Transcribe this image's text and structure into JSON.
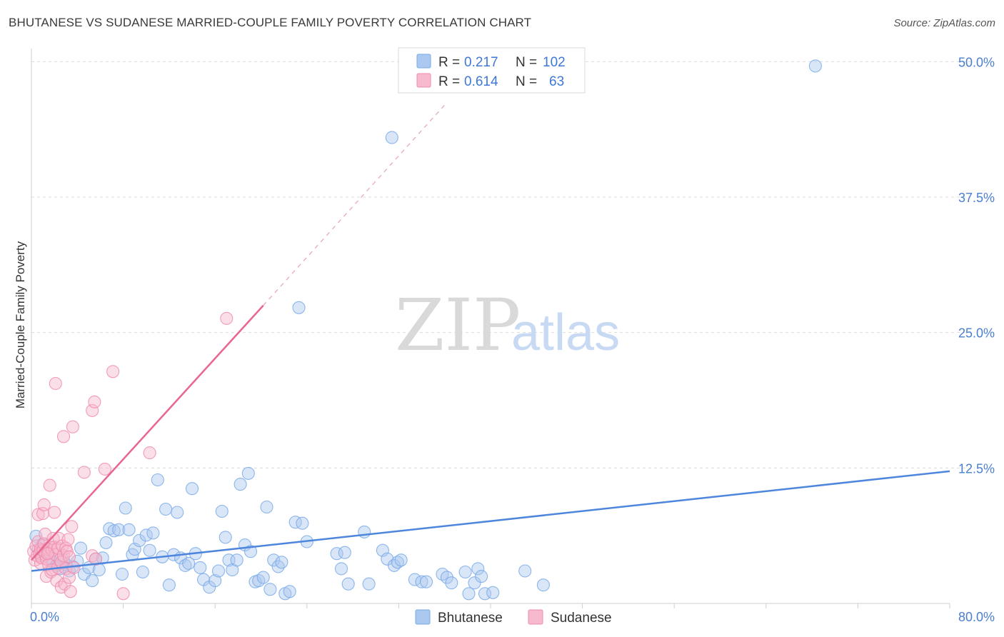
{
  "title": "BHUTANESE VS SUDANESE MARRIED-COUPLE FAMILY POVERTY CORRELATION CHART",
  "source": "Source: ZipAtlas.com",
  "watermark": {
    "zip": "ZIP",
    "atlas": "atlas"
  },
  "legend": {
    "r_label": "R =",
    "n_label": "N =",
    "series": [
      {
        "name": "Bhutanese",
        "r": "0.217",
        "n": "102",
        "color": "#7aaae8",
        "fill": "#aac8f0"
      },
      {
        "name": "Sudanese",
        "r": "0.614",
        "n": "63",
        "color": "#f08cae",
        "fill": "#f6b9cd"
      }
    ]
  },
  "chart_data": {
    "type": "scatter",
    "title": "BHUTANESE VS SUDANESE MARRIED-COUPLE FAMILY POVERTY CORRELATION CHART",
    "xlabel": "",
    "ylabel": "Married-Couple Family Poverty",
    "xlim": [
      0,
      80
    ],
    "ylim": [
      0,
      52
    ],
    "x_tick_labels": [
      "0.0%",
      "80.0%"
    ],
    "y_ticks": [
      12.5,
      25.0,
      37.5,
      50.0
    ],
    "y_tick_labels": [
      "12.5%",
      "25.0%",
      "37.5%",
      "50.0%"
    ],
    "grid": true,
    "series": [
      {
        "name": "Bhutanese",
        "color": "#4d86dc",
        "trendline": {
          "x0": 0,
          "y0": 3.0,
          "x1": 80,
          "y1": 12.2
        },
        "points": [
          [
            0.4,
            6.2
          ],
          [
            0.6,
            5.0
          ],
          [
            0.8,
            4.4
          ],
          [
            1.0,
            5.5
          ],
          [
            1.3,
            4.8
          ],
          [
            1.6,
            4.2
          ],
          [
            1.9,
            3.8
          ],
          [
            2.2,
            3.5
          ],
          [
            2.5,
            3.2
          ],
          [
            2.8,
            4.0
          ],
          [
            3.0,
            3.6
          ],
          [
            3.3,
            3.0
          ],
          [
            3.6,
            3.4
          ],
          [
            4.0,
            3.9
          ],
          [
            4.3,
            5.1
          ],
          [
            4.6,
            2.7
          ],
          [
            5.0,
            3.3
          ],
          [
            5.3,
            2.1
          ],
          [
            5.6,
            4.1
          ],
          [
            5.9,
            3.1
          ],
          [
            6.2,
            4.2
          ],
          [
            6.5,
            5.6
          ],
          [
            6.8,
            6.9
          ],
          [
            7.2,
            6.7
          ],
          [
            7.6,
            6.8
          ],
          [
            7.9,
            2.7
          ],
          [
            8.2,
            8.8
          ],
          [
            8.5,
            6.8
          ],
          [
            8.8,
            4.5
          ],
          [
            9.0,
            5.0
          ],
          [
            9.4,
            5.8
          ],
          [
            9.7,
            2.9
          ],
          [
            10.0,
            6.3
          ],
          [
            10.3,
            4.9
          ],
          [
            10.6,
            6.5
          ],
          [
            11.0,
            11.4
          ],
          [
            11.4,
            4.3
          ],
          [
            11.7,
            8.7
          ],
          [
            12.0,
            1.7
          ],
          [
            12.4,
            4.5
          ],
          [
            12.7,
            8.4
          ],
          [
            13.0,
            4.2
          ],
          [
            13.4,
            3.5
          ],
          [
            13.7,
            3.7
          ],
          [
            14.0,
            10.6
          ],
          [
            14.3,
            4.6
          ],
          [
            14.7,
            3.3
          ],
          [
            15.0,
            2.2
          ],
          [
            15.5,
            1.5
          ],
          [
            16.0,
            2.1
          ],
          [
            16.3,
            3.0
          ],
          [
            16.6,
            8.5
          ],
          [
            16.9,
            6.1
          ],
          [
            17.2,
            4.0
          ],
          [
            17.5,
            3.1
          ],
          [
            17.9,
            4.0
          ],
          [
            18.2,
            11.0
          ],
          [
            18.6,
            5.4
          ],
          [
            18.9,
            12.0
          ],
          [
            19.1,
            4.8
          ],
          [
            19.5,
            2.0
          ],
          [
            19.8,
            2.1
          ],
          [
            20.2,
            2.4
          ],
          [
            20.5,
            8.9
          ],
          [
            20.8,
            1.3
          ],
          [
            21.1,
            4.0
          ],
          [
            21.5,
            3.4
          ],
          [
            21.8,
            3.8
          ],
          [
            22.1,
            0.9
          ],
          [
            22.5,
            1.1
          ],
          [
            23.0,
            7.5
          ],
          [
            23.3,
            27.3
          ],
          [
            23.6,
            7.4
          ],
          [
            24.0,
            5.7
          ],
          [
            26.6,
            4.6
          ],
          [
            27.0,
            3.2
          ],
          [
            27.3,
            4.7
          ],
          [
            27.6,
            1.8
          ],
          [
            29.0,
            6.6
          ],
          [
            29.4,
            1.8
          ],
          [
            30.6,
            4.9
          ],
          [
            31.0,
            4.1
          ],
          [
            31.4,
            43.0
          ],
          [
            31.6,
            3.5
          ],
          [
            31.9,
            3.8
          ],
          [
            32.2,
            4.0
          ],
          [
            33.4,
            2.2
          ],
          [
            34.0,
            2.0
          ],
          [
            34.4,
            2.0
          ],
          [
            35.8,
            2.7
          ],
          [
            36.2,
            2.4
          ],
          [
            36.6,
            1.9
          ],
          [
            37.8,
            2.9
          ],
          [
            38.1,
            0.9
          ],
          [
            38.6,
            1.9
          ],
          [
            38.9,
            3.2
          ],
          [
            39.2,
            2.5
          ],
          [
            39.5,
            0.9
          ],
          [
            40.2,
            1.0
          ],
          [
            43.0,
            3.0
          ],
          [
            44.6,
            1.7
          ],
          [
            68.3,
            49.6
          ]
        ]
      },
      {
        "name": "Sudanese",
        "color": "#e8668f",
        "trendline": {
          "x0": 0,
          "y0": 4.0,
          "x1": 20.2,
          "y1": 27.5,
          "dash_to": {
            "x": 36.0,
            "y": 46.0
          }
        },
        "points": [
          [
            0.2,
            4.8
          ],
          [
            0.3,
            4.0
          ],
          [
            0.4,
            5.3
          ],
          [
            0.5,
            4.4
          ],
          [
            0.6,
            8.2
          ],
          [
            0.6,
            5.7
          ],
          [
            0.7,
            4.6
          ],
          [
            0.8,
            5.0
          ],
          [
            0.8,
            3.7
          ],
          [
            0.9,
            4.2
          ],
          [
            1.0,
            8.3
          ],
          [
            1.0,
            4.9
          ],
          [
            1.1,
            9.1
          ],
          [
            1.1,
            5.5
          ],
          [
            1.2,
            6.4
          ],
          [
            1.2,
            4.5
          ],
          [
            1.3,
            2.5
          ],
          [
            1.3,
            4.1
          ],
          [
            1.4,
            5.0
          ],
          [
            1.5,
            3.6
          ],
          [
            1.5,
            4.7
          ],
          [
            1.6,
            5.2
          ],
          [
            1.6,
            10.9
          ],
          [
            1.7,
            2.9
          ],
          [
            1.8,
            4.9
          ],
          [
            1.8,
            3.1
          ],
          [
            1.9,
            6.0
          ],
          [
            2.0,
            5.2
          ],
          [
            2.0,
            8.4
          ],
          [
            2.1,
            4.5
          ],
          [
            2.1,
            20.3
          ],
          [
            2.2,
            2.1
          ],
          [
            2.3,
            3.3
          ],
          [
            2.3,
            5.1
          ],
          [
            2.4,
            6.0
          ],
          [
            2.5,
            4.0
          ],
          [
            2.6,
            3.8
          ],
          [
            2.6,
            1.5
          ],
          [
            2.7,
            5.3
          ],
          [
            2.8,
            4.4
          ],
          [
            2.8,
            15.4
          ],
          [
            2.9,
            1.8
          ],
          [
            3.0,
            5.1
          ],
          [
            3.0,
            3.2
          ],
          [
            3.1,
            4.8
          ],
          [
            3.2,
            5.9
          ],
          [
            3.3,
            2.4
          ],
          [
            3.3,
            4.3
          ],
          [
            3.4,
            1.1
          ],
          [
            3.5,
            7.1
          ],
          [
            3.6,
            16.3
          ],
          [
            3.7,
            3.3
          ],
          [
            4.6,
            12.1
          ],
          [
            5.3,
            4.4
          ],
          [
            5.3,
            17.8
          ],
          [
            5.5,
            18.6
          ],
          [
            5.6,
            4.1
          ],
          [
            6.4,
            12.4
          ],
          [
            7.1,
            21.4
          ],
          [
            8.0,
            0.9
          ],
          [
            10.3,
            13.9
          ],
          [
            17.0,
            26.3
          ],
          [
            1.4,
            4.6
          ]
        ]
      }
    ]
  }
}
